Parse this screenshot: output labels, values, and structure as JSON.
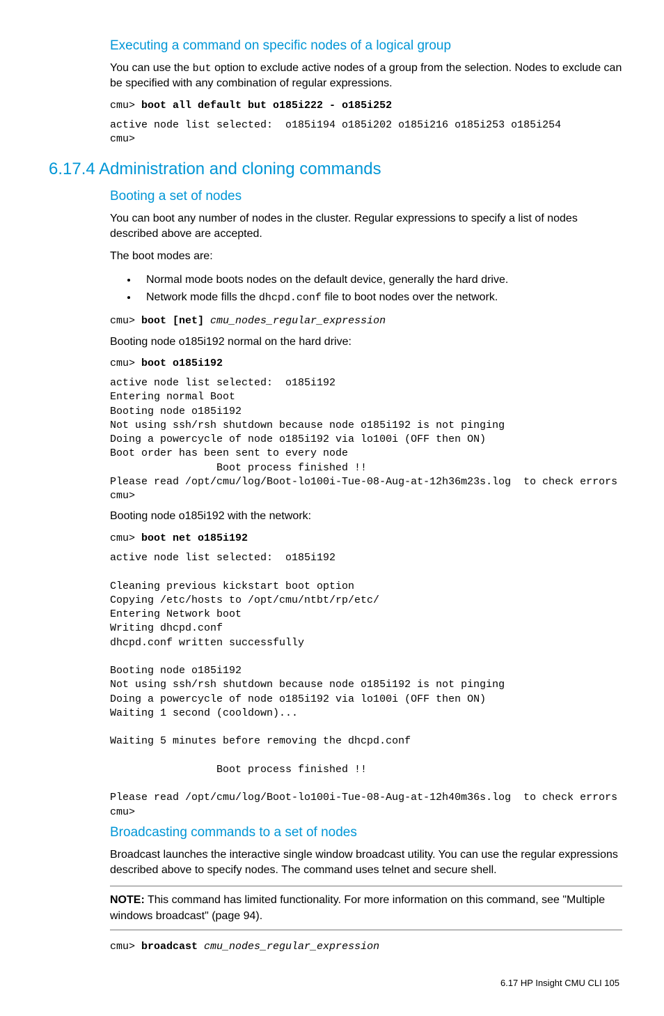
{
  "colors": {
    "heading": "#0096d6",
    "text": "#000000",
    "rule": "#777777",
    "background": "#ffffff"
  },
  "typography": {
    "body_family": "Futura / Century Gothic style sans-serif",
    "mono_family": "Courier New",
    "h2_size_pt": 18,
    "h3_size_pt": 14,
    "body_size_pt": 12,
    "mono_size_pt": 11
  },
  "sec1": {
    "title": "Executing a command on specific nodes of a logical group",
    "p1_a": "You can use the ",
    "p1_code": "but",
    "p1_b": " option to exclude active nodes of a group from the selection. Nodes to exclude can be specified with any combination of regular expressions.",
    "cmd_prompt": "cmu> ",
    "cmd_bold": "boot all default but o185i222 - o185i252",
    "out": "active node list selected:  o185i194 o185i202 o185i216 o185i253 o185i254\ncmu>"
  },
  "sec2": {
    "title": "6.17.4 Administration and cloning commands"
  },
  "sec3": {
    "title": "Booting a set of nodes",
    "p1": "You can boot any number of nodes in the cluster. Regular expressions to specify a list of nodes described above are accepted.",
    "p2": "The boot modes are:",
    "b1": "Normal mode boots nodes on the default device, generally the hard drive.",
    "b2_a": "Network mode fills the ",
    "b2_code": "dhcpd.conf",
    "b2_b": " file to boot nodes over the network.",
    "usage_prompt": "cmu> ",
    "usage_bold": "boot [net] ",
    "usage_it": "cmu_nodes_regular_expression",
    "p3": "Booting node o185i192 normal on the hard drive:",
    "cmd1_prompt": "cmu> ",
    "cmd1_bold": "boot o185i192",
    "out1": "active node list selected:  o185i192\nEntering normal Boot\nBooting node o185i192\nNot using ssh/rsh shutdown because node o185i192 is not pinging\nDoing a powercycle of node o185i192 via lo100i (OFF then ON)\nBoot order has been sent to every node\n                 Boot process finished !!\nPlease read /opt/cmu/log/Boot-lo100i-Tue-08-Aug-at-12h36m23s.log  to check errors\ncmu>",
    "p4": "Booting node o185i192 with the network:",
    "cmd2_prompt": "cmu> ",
    "cmd2_bold": "boot net o185i192",
    "out2": "active node list selected:  o185i192\n\nCleaning previous kickstart boot option\nCopying /etc/hosts to /opt/cmu/ntbt/rp/etc/\nEntering Network boot\nWriting dhcpd.conf\ndhcpd.conf written successfully\n\nBooting node o185i192\nNot using ssh/rsh shutdown because node o185i192 is not pinging\nDoing a powercycle of node o185i192 via lo100i (OFF then ON)\nWaiting 1 second (cooldown)...\n\nWaiting 5 minutes before removing the dhcpd.conf\n\n                 Boot process finished !!\n\nPlease read /opt/cmu/log/Boot-lo100i-Tue-08-Aug-at-12h40m36s.log  to check errors\ncmu>"
  },
  "sec4": {
    "title": "Broadcasting commands to a set of nodes",
    "p1": "Broadcast launches the interactive single window broadcast utility. You can use the regular expressions described above to specify nodes. The command uses telnet and secure shell.",
    "note_label": "NOTE:",
    "note_a": "   This command has limited functionality. For more information on this command, see ",
    "note_link": "\"Multiple windows broadcast\" (page 94)",
    "note_b": ".",
    "cmd_prompt": "cmu> ",
    "cmd_bold": "broadcast ",
    "cmd_it": "cmu_nodes_regular_expression"
  },
  "footer": {
    "text": "6.17 HP Insight CMU CLI   105"
  }
}
